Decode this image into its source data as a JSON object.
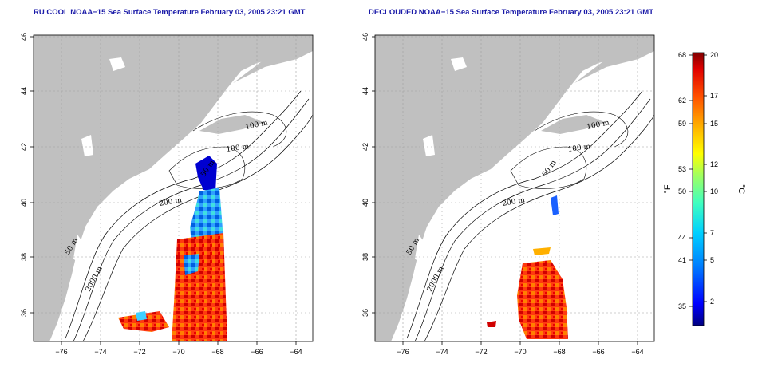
{
  "panels": [
    {
      "id": "raw",
      "title": "RU COOL NOAA−15 Sea Surface Temperature February 03, 2005 23:21 GMT",
      "x_ticks": [
        "−76",
        "−74",
        "−72",
        "−70",
        "−68",
        "−66",
        "−64"
      ],
      "y_ticks": [
        "46",
        "44",
        "42",
        "40",
        "38",
        "36"
      ],
      "contour_labels": [
        "100 m",
        "100 m",
        "50 m",
        "200 m",
        "50 m",
        "2000 m"
      ]
    },
    {
      "id": "declouded",
      "title": "DECLOUDED NOAA−15 Sea Surface Temperature February 03, 2005 23:21 GMT",
      "x_ticks": [
        "−76",
        "−74",
        "−72",
        "−70",
        "−68",
        "−66",
        "−64"
      ],
      "y_ticks": [
        "46",
        "44",
        "42",
        "40",
        "38",
        "36"
      ],
      "contour_labels": [
        "100 m",
        "100 m",
        "50 m",
        "200 m",
        "50 m",
        "2000 m"
      ]
    }
  ],
  "colorbar": {
    "f_ticks": [
      "68",
      "62",
      "59",
      "53",
      "50",
      "44",
      "41",
      "35"
    ],
    "c_ticks": [
      "20",
      "17",
      "15",
      "12",
      "10",
      "7",
      "5",
      "2"
    ],
    "f_label": "°F",
    "c_label": "°C",
    "colors": [
      "#000080",
      "#0000ff",
      "#0080ff",
      "#00d0ff",
      "#40ffbf",
      "#a0ff60",
      "#ffff00",
      "#ffb000",
      "#ff5000",
      "#e00000",
      "#800000"
    ]
  },
  "map_style": {
    "land_color": "#c0c0c0",
    "water_color": "#ffffff",
    "grid_style": "dotted"
  }
}
